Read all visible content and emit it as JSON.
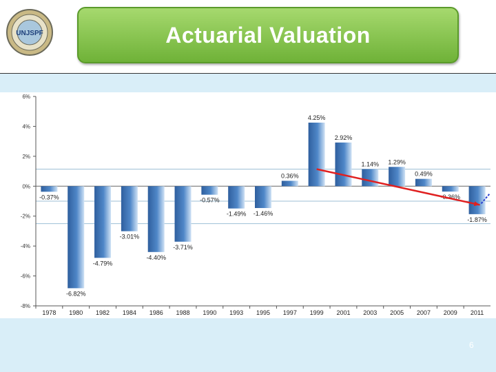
{
  "slide": {
    "title": "Actuarial Valuation",
    "page_number": "6",
    "logo_text": "UNJSPF"
  },
  "colors": {
    "bar": "#4f87c8",
    "trend": "#e02020",
    "title_green": "#8cc74f"
  },
  "chart_data": {
    "type": "bar",
    "categories": [
      "1978",
      "1980",
      "1982",
      "1984",
      "1986",
      "1988",
      "1990",
      "1993",
      "1995",
      "1997",
      "1999",
      "2001",
      "2003",
      "2005",
      "2007",
      "2009",
      "2011"
    ],
    "values": [
      -0.37,
      -6.82,
      -4.79,
      -3.01,
      -4.4,
      -3.71,
      -0.57,
      -1.49,
      -1.46,
      0.36,
      4.25,
      2.92,
      1.14,
      1.29,
      0.49,
      -0.36,
      -1.87
    ],
    "data_labels": [
      "-0.37%",
      "-6.82%",
      "-4.79%",
      "-3.01%",
      "-4.40%",
      "-3.71%",
      "-0.57%",
      "-1.49%",
      "-1.46%",
      "0.36%",
      "4.25%",
      "2.92%",
      "1.14%",
      "1.29%",
      "0.49%",
      "-0.36%",
      "-1.87%"
    ],
    "y_ticks": [
      6,
      4,
      2,
      0,
      -2,
      -4,
      -6,
      -8
    ],
    "y_tick_labels": [
      "6%",
      "4%",
      "2%",
      "0%",
      "-2%",
      "-4%",
      "-6%",
      "-8%"
    ],
    "ylim": [
      -8,
      6
    ],
    "reference_lines": [
      1.14,
      -1.0,
      -2.5
    ],
    "trend": {
      "from": {
        "x": "1999",
        "y": 1.14
      },
      "to": {
        "x": "2011",
        "y": -1.25
      }
    },
    "title": "",
    "xlabel": "",
    "ylabel": "",
    "grid": false
  }
}
